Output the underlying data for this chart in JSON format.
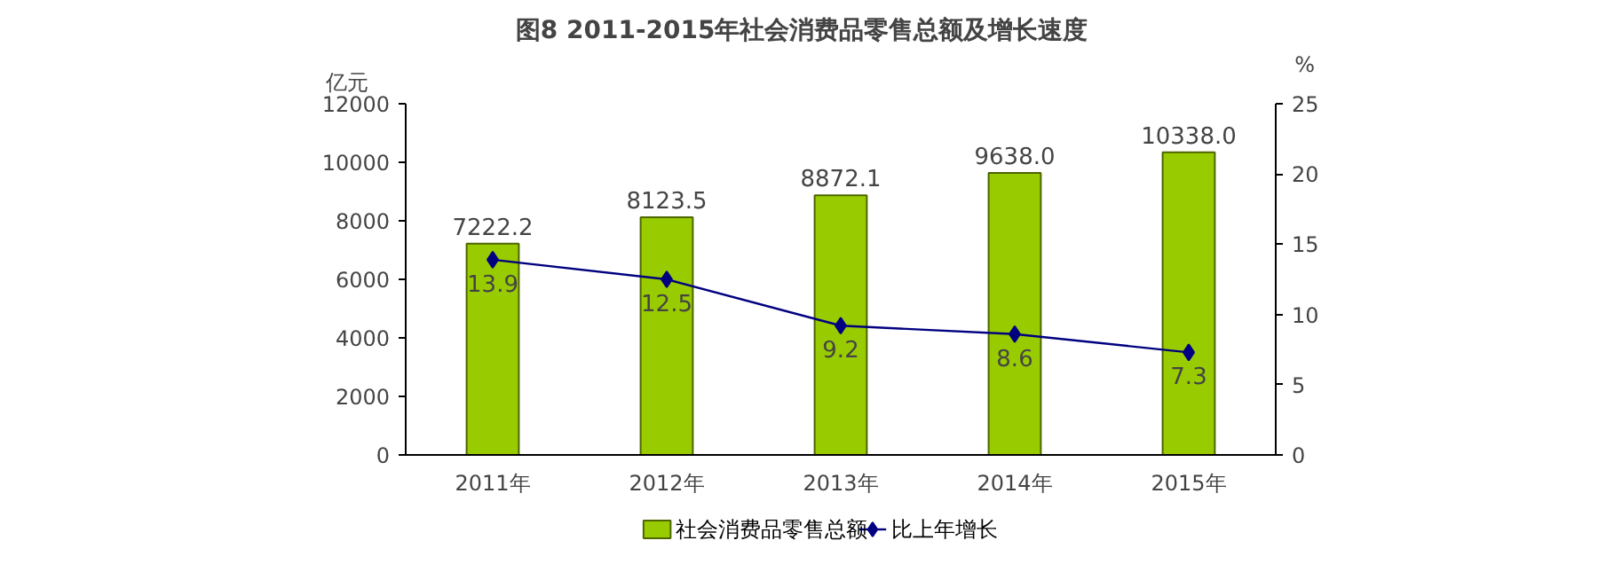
{
  "chart_data": {
    "type": "bar",
    "title": "图8          2011-2015年社会消费品零售总额及增长速度",
    "categories": [
      "2011年",
      "2012年",
      "2013年",
      "2014年",
      "2015年"
    ],
    "ylabel": "亿元",
    "y2label": "%",
    "series": [
      {
        "name": "社会消费品零售总额",
        "color": "#99cc00",
        "values": [
          7222.2,
          8123.5,
          8872.1,
          9638.0,
          10338.0
        ],
        "value_labels": [
          "7222.2",
          "8123.5",
          "8872.1",
          "9638.0",
          "10338.0"
        ]
      },
      {
        "name": "比上年增长",
        "type": "line",
        "axis": "y2",
        "color": "#000080",
        "marker": "diamond",
        "values": [
          13.9,
          12.5,
          9.2,
          8.6,
          7.3
        ],
        "value_labels": [
          "13.9",
          "12.5",
          "9.2",
          "8.6",
          "7.3"
        ]
      }
    ],
    "ylim": [
      0,
      12000
    ],
    "yticks": [
      0,
      2000,
      4000,
      6000,
      8000,
      10000,
      12000
    ],
    "y2lim": [
      0,
      25
    ],
    "y2ticks": [
      0,
      5,
      10,
      15,
      20,
      25
    ],
    "grid": false,
    "legend": "bottom"
  }
}
